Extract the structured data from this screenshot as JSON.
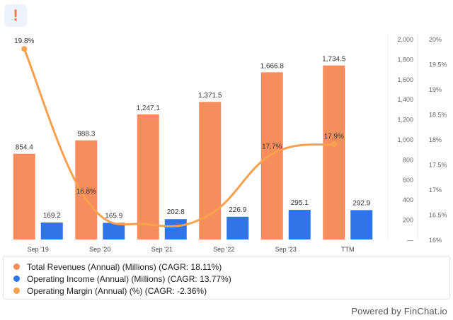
{
  "alert_icon": "!",
  "footer_text": "Powered by FinChat.io",
  "colors": {
    "revenue": "#f78d5c",
    "income": "#2f74e8",
    "margin": "#f8a04b",
    "axis_text": "#666666",
    "badge": "#f07a3a"
  },
  "chart_data": {
    "type": "bar",
    "categories": [
      "Sep '19",
      "Sep '20",
      "Sep '21",
      "Sep '22",
      "Sep '23",
      "TTM"
    ],
    "series": [
      {
        "name": "Total Revenues (Annual) (Millions) (CAGR: 18.11%)",
        "kind": "bar",
        "axis": "left",
        "values": [
          854.4,
          988.3,
          1247.1,
          1371.5,
          1666.8,
          1734.5
        ],
        "labels": [
          "854.4",
          "988.3",
          "1,247.1",
          "1,371.5",
          "1,666.8",
          "1,734.5"
        ]
      },
      {
        "name": "Operating Income (Annual) (Millions) (CAGR: 13.77%)",
        "kind": "bar",
        "axis": "left",
        "values": [
          169.2,
          165.9,
          202.8,
          226.9,
          295.1,
          292.9
        ],
        "labels": [
          "169.2",
          "165.9",
          "202.8",
          "226.9",
          "295.1",
          "292.9"
        ]
      },
      {
        "name": "Operating Margin (Annual) (%) (CAGR: -2.36%)",
        "kind": "line",
        "axis": "right",
        "values": [
          19.8,
          16.8,
          16.3,
          16.5,
          17.7,
          17.9
        ],
        "labels": [
          "19.8%",
          "16.8%",
          "",
          "",
          "17.7%",
          "17.9%"
        ]
      }
    ],
    "y_left": {
      "ylim": [
        0,
        2000
      ],
      "ticks": [
        "—",
        "200",
        "400",
        "600",
        "800",
        "1,000",
        "1,200",
        "1,400",
        "1,600",
        "1,800",
        "2,000"
      ]
    },
    "y_right": {
      "ylim": [
        16,
        20
      ],
      "ticks": [
        "16%",
        "16.5%",
        "17%",
        "17.5%",
        "18%",
        "18.5%",
        "19%",
        "19.5%",
        "20%"
      ]
    },
    "grid": false,
    "legend_position": "bottom"
  }
}
